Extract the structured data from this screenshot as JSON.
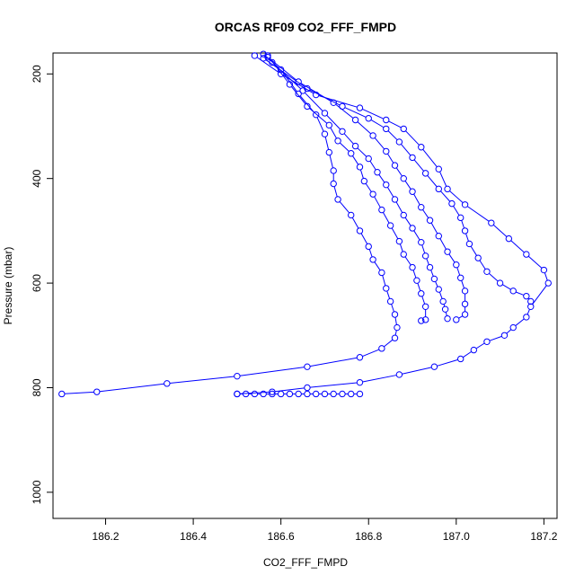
{
  "chart_data": {
    "type": "scatter",
    "title": "ORCAS RF09 CO2_FFF_FMPD",
    "xlabel": "CO2_FFF_FMPD",
    "ylabel": "Pressure (mbar)",
    "xlim": [
      186.08,
      187.23
    ],
    "ylim": [
      1050,
      160
    ],
    "x_ticks": [
      186.2,
      186.4,
      186.6,
      186.8,
      187.0,
      187.2
    ],
    "x_tick_labels": [
      "186.2",
      "186.4",
      "186.6",
      "186.8",
      "187.0",
      "187.2"
    ],
    "y_ticks": [
      200,
      400,
      600,
      800,
      1000
    ],
    "y_tick_labels": [
      "200",
      "400",
      "600",
      "800",
      "1000"
    ],
    "y_reversed": true,
    "grid": false,
    "marker": "open-circle",
    "color": "#0000ff",
    "series": [
      {
        "points": [
          [
            186.56,
            162
          ],
          [
            186.6,
            192
          ],
          [
            186.64,
            238
          ],
          [
            186.68,
            278
          ],
          [
            186.7,
            315
          ],
          [
            186.71,
            350
          ],
          [
            186.72,
            385
          ],
          [
            186.72,
            410
          ],
          [
            186.73,
            440
          ],
          [
            186.76,
            470
          ],
          [
            186.78,
            500
          ],
          [
            186.8,
            530
          ],
          [
            186.81,
            555
          ],
          [
            186.83,
            580
          ],
          [
            186.84,
            610
          ],
          [
            186.85,
            635
          ],
          [
            186.86,
            660
          ],
          [
            186.865,
            685
          ],
          [
            186.86,
            705
          ],
          [
            186.83,
            725
          ],
          [
            186.78,
            742
          ],
          [
            186.66,
            760
          ],
          [
            186.5,
            778
          ],
          [
            186.34,
            792
          ],
          [
            186.18,
            808
          ],
          [
            186.1,
            812
          ]
        ]
      },
      {
        "points": [
          [
            186.57,
            165
          ],
          [
            186.62,
            220
          ],
          [
            186.66,
            262
          ],
          [
            186.71,
            298
          ],
          [
            186.73,
            328
          ],
          [
            186.76,
            352
          ],
          [
            186.78,
            378
          ],
          [
            186.79,
            405
          ],
          [
            186.81,
            430
          ],
          [
            186.83,
            460
          ],
          [
            186.85,
            490
          ],
          [
            186.87,
            520
          ],
          [
            186.88,
            545
          ],
          [
            186.9,
            570
          ],
          [
            186.91,
            595
          ],
          [
            186.92,
            620
          ],
          [
            186.93,
            645
          ],
          [
            186.93,
            670
          ],
          [
            186.92,
            672
          ]
        ]
      },
      {
        "points": [
          [
            186.58,
            178
          ],
          [
            186.65,
            232
          ],
          [
            186.7,
            275
          ],
          [
            186.74,
            310
          ],
          [
            186.77,
            338
          ],
          [
            186.8,
            362
          ],
          [
            186.82,
            388
          ],
          [
            186.84,
            412
          ],
          [
            186.86,
            440
          ],
          [
            186.88,
            470
          ],
          [
            186.9,
            495
          ],
          [
            186.92,
            522
          ],
          [
            186.93,
            548
          ],
          [
            186.94,
            570
          ],
          [
            186.95,
            592
          ],
          [
            186.96,
            612
          ],
          [
            186.97,
            635
          ],
          [
            186.975,
            650
          ],
          [
            186.98,
            668
          ]
        ]
      },
      {
        "points": [
          [
            186.57,
            168
          ],
          [
            186.64,
            215
          ],
          [
            186.72,
            255
          ],
          [
            186.77,
            288
          ],
          [
            186.81,
            318
          ],
          [
            186.84,
            348
          ],
          [
            186.86,
            375
          ],
          [
            186.88,
            400
          ],
          [
            186.9,
            425
          ],
          [
            186.92,
            455
          ],
          [
            186.94,
            480
          ],
          [
            186.96,
            510
          ],
          [
            186.98,
            540
          ],
          [
            187.0,
            565
          ],
          [
            187.01,
            590
          ],
          [
            187.02,
            615
          ],
          [
            187.02,
            640
          ],
          [
            187.02,
            660
          ],
          [
            187.0,
            670
          ]
        ]
      },
      {
        "points": [
          [
            186.56,
            170
          ],
          [
            186.66,
            228
          ],
          [
            186.74,
            262
          ],
          [
            186.8,
            285
          ],
          [
            186.84,
            305
          ],
          [
            186.87,
            330
          ],
          [
            186.9,
            360
          ],
          [
            186.93,
            390
          ],
          [
            186.96,
            420
          ],
          [
            186.99,
            448
          ],
          [
            187.01,
            475
          ],
          [
            187.02,
            500
          ],
          [
            187.03,
            525
          ],
          [
            187.05,
            552
          ],
          [
            187.07,
            578
          ],
          [
            187.1,
            600
          ],
          [
            187.13,
            615
          ],
          [
            187.16,
            625
          ],
          [
            187.17,
            635
          ]
        ]
      },
      {
        "points": [
          [
            186.54,
            165
          ],
          [
            186.6,
            200
          ],
          [
            186.68,
            240
          ],
          [
            186.78,
            265
          ],
          [
            186.84,
            288
          ],
          [
            186.88,
            305
          ],
          [
            186.92,
            340
          ],
          [
            186.96,
            382
          ],
          [
            186.98,
            420
          ],
          [
            187.02,
            450
          ],
          [
            187.08,
            485
          ],
          [
            187.12,
            515
          ],
          [
            187.16,
            545
          ],
          [
            187.2,
            575
          ],
          [
            187.21,
            600
          ],
          [
            187.17,
            645
          ],
          [
            187.16,
            665
          ],
          [
            187.13,
            685
          ],
          [
            187.11,
            700
          ],
          [
            187.07,
            712
          ],
          [
            187.04,
            728
          ],
          [
            187.01,
            745
          ],
          [
            186.95,
            760
          ],
          [
            186.87,
            775
          ],
          [
            186.78,
            790
          ],
          [
            186.66,
            800
          ],
          [
            186.58,
            808
          ],
          [
            186.5,
            812
          ]
        ]
      },
      {
        "points": [
          [
            186.5,
            812
          ],
          [
            186.52,
            812
          ],
          [
            186.54,
            812
          ],
          [
            186.56,
            812
          ],
          [
            186.58,
            812
          ],
          [
            186.6,
            812
          ],
          [
            186.62,
            812
          ],
          [
            186.64,
            812
          ],
          [
            186.66,
            812
          ],
          [
            186.68,
            812
          ],
          [
            186.7,
            812
          ],
          [
            186.72,
            812
          ],
          [
            186.74,
            812
          ],
          [
            186.76,
            812
          ],
          [
            186.78,
            812
          ]
        ]
      }
    ]
  }
}
